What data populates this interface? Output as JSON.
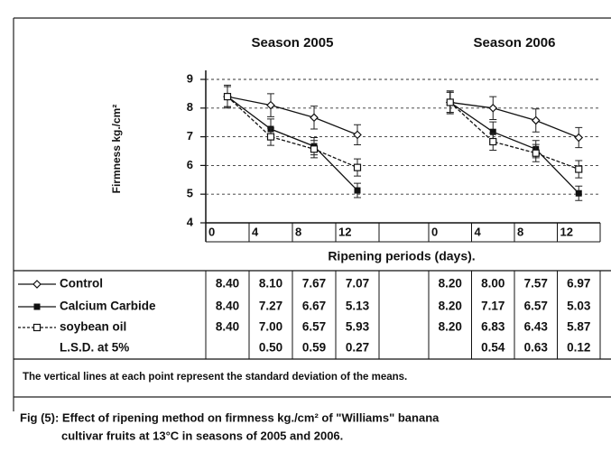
{
  "chart_data": {
    "type": "line",
    "y_label": "Firmness kg./cm²",
    "x_label": "Ripening periods (days).",
    "ylim": [
      4,
      9
    ],
    "yticks": [
      4,
      5,
      6,
      7,
      8,
      9
    ],
    "grid": true,
    "categories": [
      "0",
      "4",
      "8",
      "12"
    ],
    "series": [
      {
        "name": "Control",
        "color": "#111111",
        "dash": "solid",
        "marker": "open-diamond"
      },
      {
        "name": "Calcium Carbide",
        "color": "#111111",
        "dash": "solid",
        "marker": "filled-square"
      },
      {
        "name": "soybean oil",
        "color": "#111111",
        "dash": "dashed",
        "marker": "open-square"
      }
    ],
    "panels": [
      {
        "title": "Season 2005",
        "data": [
          {
            "values": [
              8.4,
              8.1,
              7.67,
              7.07
            ],
            "value_labels": [
              "8.40",
              "8.10",
              "7.67",
              "7.07"
            ],
            "errors": [
              0.4,
              0.4,
              0.4,
              0.35
            ]
          },
          {
            "values": [
              8.4,
              7.27,
              6.67,
              5.13
            ],
            "value_labels": [
              "8.40",
              "7.27",
              "6.67",
              "5.13"
            ],
            "errors": [
              0.35,
              0.35,
              0.3,
              0.25
            ]
          },
          {
            "values": [
              8.4,
              7.0,
              6.57,
              5.93
            ],
            "value_labels": [
              "8.40",
              "7.00",
              "6.57",
              "5.93"
            ],
            "errors": [
              0.35,
              0.3,
              0.3,
              0.3
            ]
          }
        ],
        "lsd": {
          "name": "L.S.D. at 5%",
          "values": [
            null,
            0.5,
            0.59,
            0.27
          ],
          "value_labels": [
            null,
            "0.50",
            "0.59",
            "0.27"
          ]
        }
      },
      {
        "title": "Season 2006",
        "data": [
          {
            "values": [
              8.2,
              8.0,
              7.57,
              6.97
            ],
            "value_labels": [
              "8.20",
              "8.00",
              "7.57",
              "6.97"
            ],
            "errors": [
              0.4,
              0.4,
              0.4,
              0.35
            ]
          },
          {
            "values": [
              8.2,
              7.17,
              6.57,
              5.03
            ],
            "value_labels": [
              "8.20",
              "7.17",
              "6.57",
              "5.03"
            ],
            "errors": [
              0.35,
              0.35,
              0.3,
              0.25
            ]
          },
          {
            "values": [
              8.2,
              6.83,
              6.43,
              5.87
            ],
            "value_labels": [
              "8.20",
              "6.83",
              "6.43",
              "5.87"
            ],
            "errors": [
              0.35,
              0.3,
              0.3,
              0.3
            ]
          }
        ],
        "lsd": {
          "name": "L.S.D. at 5%",
          "values": [
            null,
            0.54,
            0.63,
            0.12
          ],
          "value_labels": [
            null,
            "0.54",
            "0.63",
            "0.12"
          ]
        }
      }
    ],
    "note": "The vertical lines at each point represent the standard deviation of the means.",
    "caption": [
      "Fig (5): Effect of ripening method on firmness kg./cm² of \"Williams\" banana",
      "cultivar fruits at 13°C in seasons of 2005 and 2006."
    ]
  }
}
